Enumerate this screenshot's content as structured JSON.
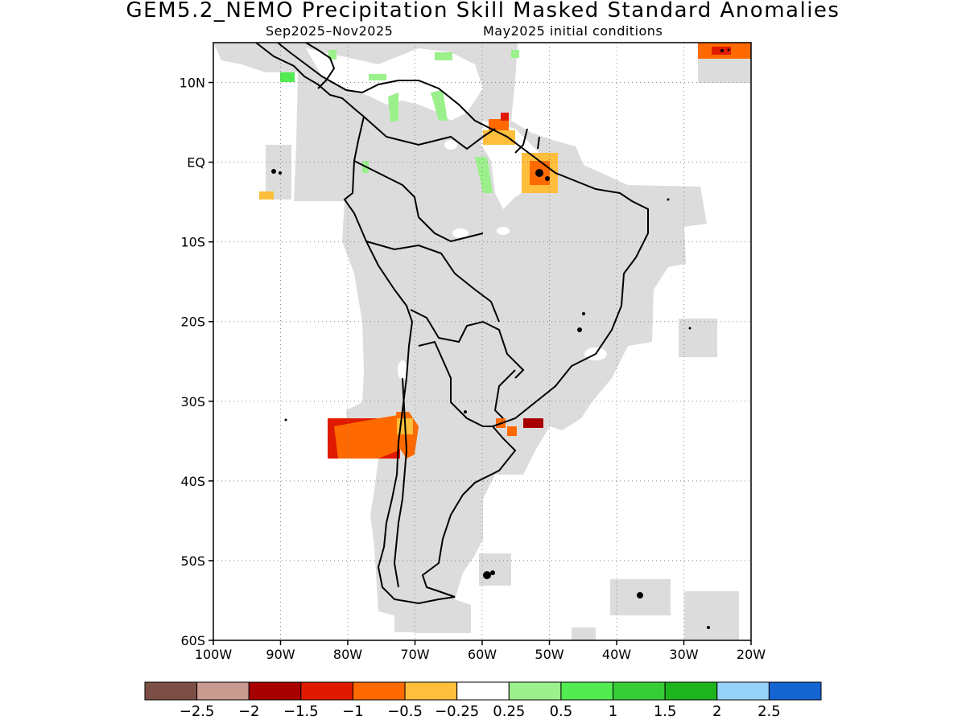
{
  "title": "GEM5.2_NEMO Precipitation Skill Masked Standard Anomalies",
  "subtitle_left": "Sep2025–Nov2025",
  "subtitle_right": "May2025 initial conditions",
  "map": {
    "lon_range": [
      -100,
      -20
    ],
    "lat_range": [
      -60,
      15
    ],
    "lat_ticks": [
      {
        "v": 10,
        "label": "10N"
      },
      {
        "v": 0,
        "label": "EQ"
      },
      {
        "v": -10,
        "label": "10S"
      },
      {
        "v": -20,
        "label": "20S"
      },
      {
        "v": -30,
        "label": "30S"
      },
      {
        "v": -40,
        "label": "40S"
      },
      {
        "v": -50,
        "label": "50S"
      },
      {
        "v": -60,
        "label": "60S"
      }
    ],
    "lon_ticks": [
      {
        "v": -100,
        "label": "100W"
      },
      {
        "v": -90,
        "label": "90W"
      },
      {
        "v": -80,
        "label": "80W"
      },
      {
        "v": -70,
        "label": "70W"
      },
      {
        "v": -60,
        "label": "60W"
      },
      {
        "v": -50,
        "label": "50W"
      },
      {
        "v": -40,
        "label": "40W"
      },
      {
        "v": -30,
        "label": "30W"
      },
      {
        "v": -20,
        "label": "20W"
      }
    ],
    "mask_color": "#dcdcdc",
    "grid": "dotted"
  },
  "colorbar": {
    "colors": [
      "#7b4f45",
      "#c99a90",
      "#a80000",
      "#e01a00",
      "#ff6a00",
      "#ffbe3c",
      "#ffffff",
      "#9bf08c",
      "#52eb52",
      "#37cd37",
      "#1eb41e",
      "#96d2fa",
      "#1464d2"
    ],
    "labels": [
      "−2.5",
      "−2",
      "−1.5",
      "−1",
      "−0.5",
      "−0.25",
      "0.25",
      "0.5",
      "1",
      "1.5",
      "2",
      "2.5"
    ]
  }
}
